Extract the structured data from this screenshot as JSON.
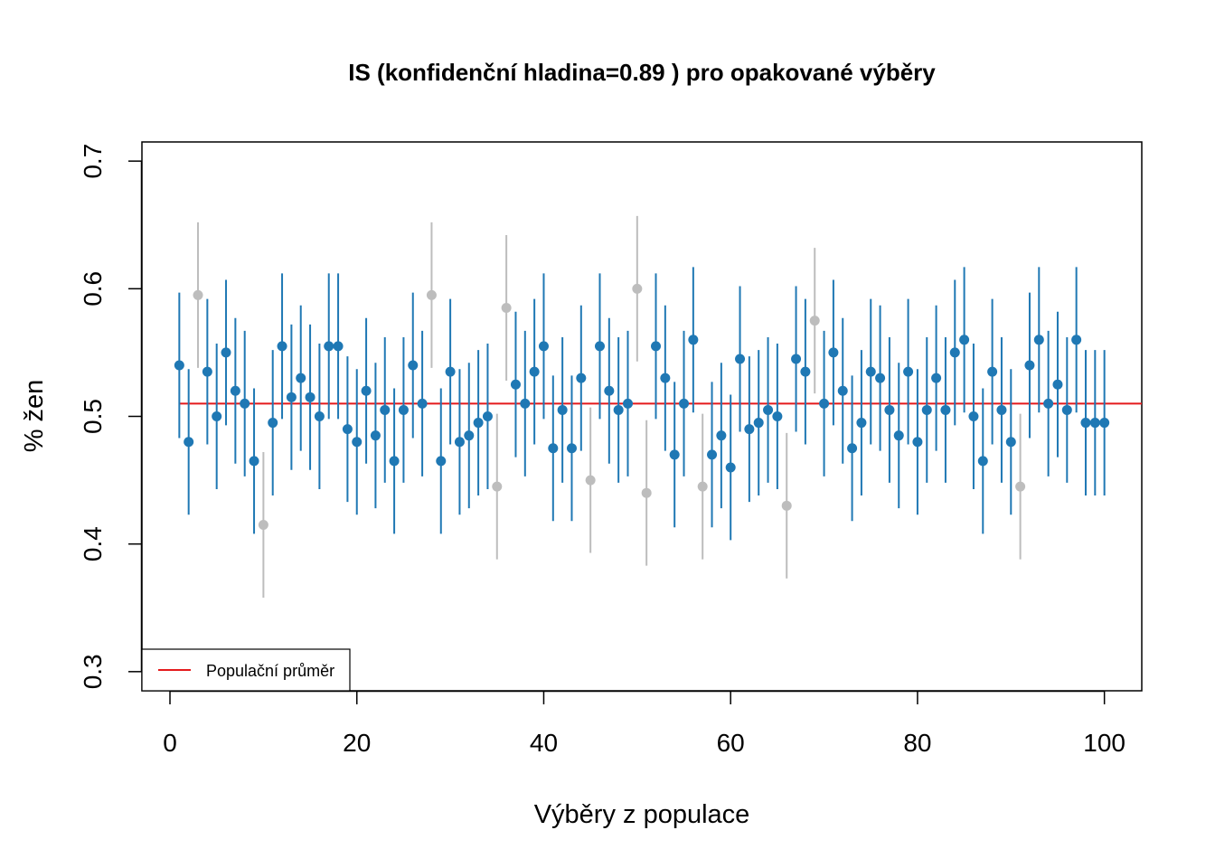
{
  "chart_data": {
    "type": "scatter",
    "subtype": "confidence-interval-error-bars",
    "title": "IS (konfidenční hladina=0.89 ) pro opakované výběry",
    "xlabel": "Výběry z populace",
    "ylabel": "% žen",
    "xlim": [
      -3,
      104
    ],
    "ylim": [
      0.285,
      0.715
    ],
    "x_ticks": [
      0,
      20,
      40,
      60,
      80,
      100
    ],
    "x_tick_labels": [
      "0",
      "20",
      "40",
      "60",
      "80",
      "100"
    ],
    "y_ticks": [
      0.3,
      0.4,
      0.5,
      0.6,
      0.7
    ],
    "y_tick_labels": [
      "0.3",
      "0.4",
      "0.5",
      "0.6",
      "0.7"
    ],
    "grid": false,
    "reference_line": {
      "label": "Populační průměr",
      "value": 0.51,
      "x_from": 1,
      "x_to": 104,
      "color": "#e41a1c"
    },
    "legend": {
      "placement": "bottom-left",
      "entries": [
        "Populační průměr"
      ]
    },
    "colors": {
      "covers_mean": "#1f78b4",
      "misses_mean": "#bdbdbd"
    },
    "half_width": 0.057,
    "x": [
      1,
      2,
      3,
      4,
      5,
      6,
      7,
      8,
      9,
      10,
      11,
      12,
      13,
      14,
      15,
      16,
      17,
      18,
      19,
      20,
      21,
      22,
      23,
      24,
      25,
      26,
      27,
      28,
      29,
      30,
      31,
      32,
      33,
      34,
      35,
      36,
      37,
      38,
      39,
      40,
      41,
      42,
      43,
      44,
      45,
      46,
      47,
      48,
      49,
      50,
      51,
      52,
      53,
      54,
      55,
      56,
      57,
      58,
      59,
      60,
      61,
      62,
      63,
      64,
      65,
      66,
      67,
      68,
      69,
      70,
      71,
      72,
      73,
      74,
      75,
      76,
      77,
      78,
      79,
      80,
      81,
      82,
      83,
      84,
      85,
      86,
      87,
      88,
      89,
      90,
      91,
      92,
      93,
      94,
      95,
      96,
      97,
      98,
      99,
      100
    ],
    "y": [
      0.54,
      0.48,
      0.595,
      0.535,
      0.5,
      0.55,
      0.52,
      0.51,
      0.465,
      0.415,
      0.495,
      0.555,
      0.515,
      0.53,
      0.515,
      0.5,
      0.555,
      0.555,
      0.49,
      0.48,
      0.52,
      0.485,
      0.505,
      0.465,
      0.505,
      0.54,
      0.51,
      0.595,
      0.465,
      0.535,
      0.48,
      0.485,
      0.495,
      0.5,
      0.445,
      0.585,
      0.525,
      0.51,
      0.535,
      0.555,
      0.475,
      0.505,
      0.475,
      0.53,
      0.45,
      0.555,
      0.52,
      0.505,
      0.51,
      0.6,
      0.44,
      0.555,
      0.53,
      0.47,
      0.51,
      0.56,
      0.445,
      0.47,
      0.485,
      0.46,
      0.545,
      0.49,
      0.495,
      0.505,
      0.5,
      0.43,
      0.545,
      0.535,
      0.575,
      0.51,
      0.55,
      0.52,
      0.475,
      0.495,
      0.535,
      0.53,
      0.505,
      0.485,
      0.535,
      0.48,
      0.505,
      0.53,
      0.505,
      0.55,
      0.56,
      0.5,
      0.465,
      0.535,
      0.505,
      0.48,
      0.445,
      0.54,
      0.56,
      0.51,
      0.525,
      0.505,
      0.56,
      0.495,
      0.495,
      0.495
    ]
  }
}
